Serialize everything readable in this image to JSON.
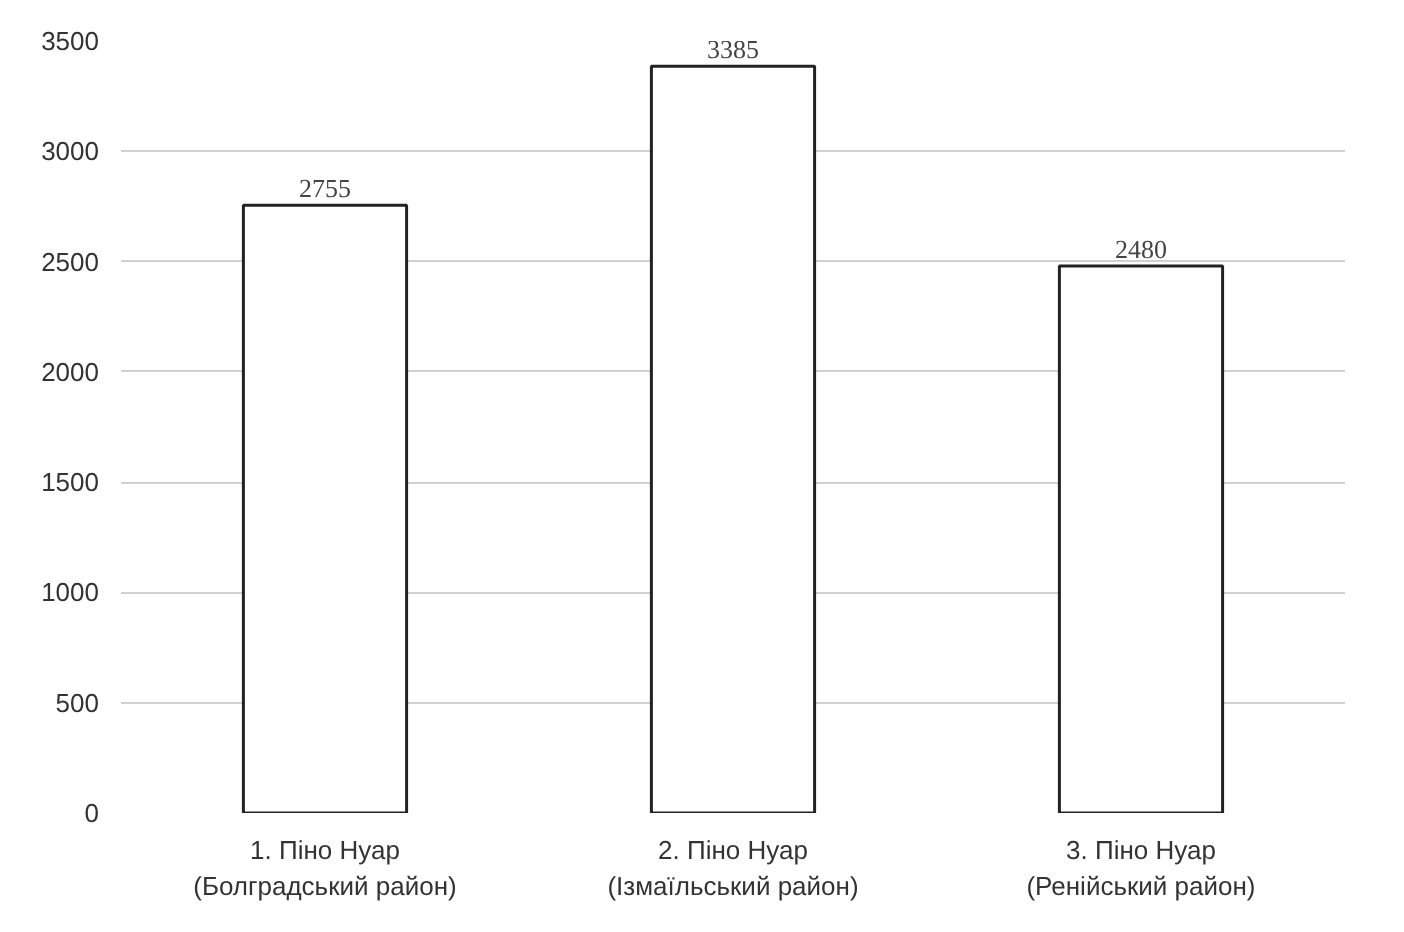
{
  "chart_data": {
    "type": "bar",
    "categories": [
      "1. Піно Нуар\n(Болградський район)",
      "2. Піно Нуар\n(Ізмаїльський район)",
      "3. Піно Нуар\n(Ренійський район)"
    ],
    "values": [
      2755,
      3385,
      2480
    ],
    "color": "#ffffff",
    "ylim": [
      0,
      3500
    ],
    "yticks": [
      0,
      500,
      1000,
      1500,
      2000,
      2500,
      3000,
      3500
    ],
    "grid": "y",
    "data_labels": true
  }
}
